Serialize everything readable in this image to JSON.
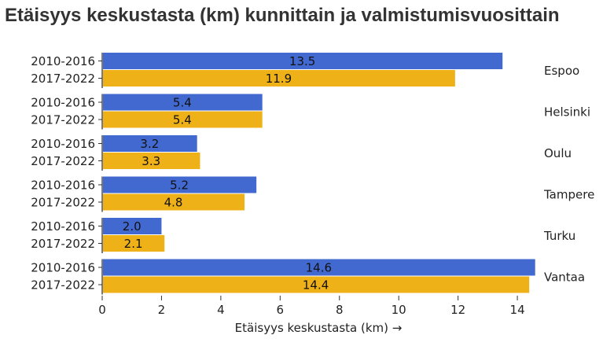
{
  "chart_data": {
    "type": "bar",
    "orientation": "horizontal",
    "title": "Etäisyys keskustasta (km) kunnittain ja valmistumisvuosittain",
    "xlabel": "Etäisyys keskustasta (km) →",
    "ylabel": "",
    "xlim": [
      0,
      14.7
    ],
    "xticks": [
      0,
      2,
      4,
      6,
      8,
      10,
      12,
      14
    ],
    "facet_position": "right",
    "categories": [
      "Espoo",
      "Helsinki",
      "Oulu",
      "Tampere",
      "Turku",
      "Vantaa"
    ],
    "series": [
      {
        "name": "2010-2016",
        "color": "#4269d0",
        "values": [
          13.5,
          5.4,
          3.2,
          5.2,
          2.0,
          14.6
        ],
        "labels": [
          "13.5",
          "5.4",
          "3.2",
          "5.2",
          "2.0",
          "14.6"
        ]
      },
      {
        "name": "2017-2022",
        "color": "#efb118",
        "values": [
          11.9,
          5.4,
          3.3,
          4.8,
          2.1,
          14.4
        ],
        "labels": [
          "11.9",
          "5.4",
          "3.3",
          "4.8",
          "2.1",
          "14.4"
        ]
      }
    ]
  }
}
